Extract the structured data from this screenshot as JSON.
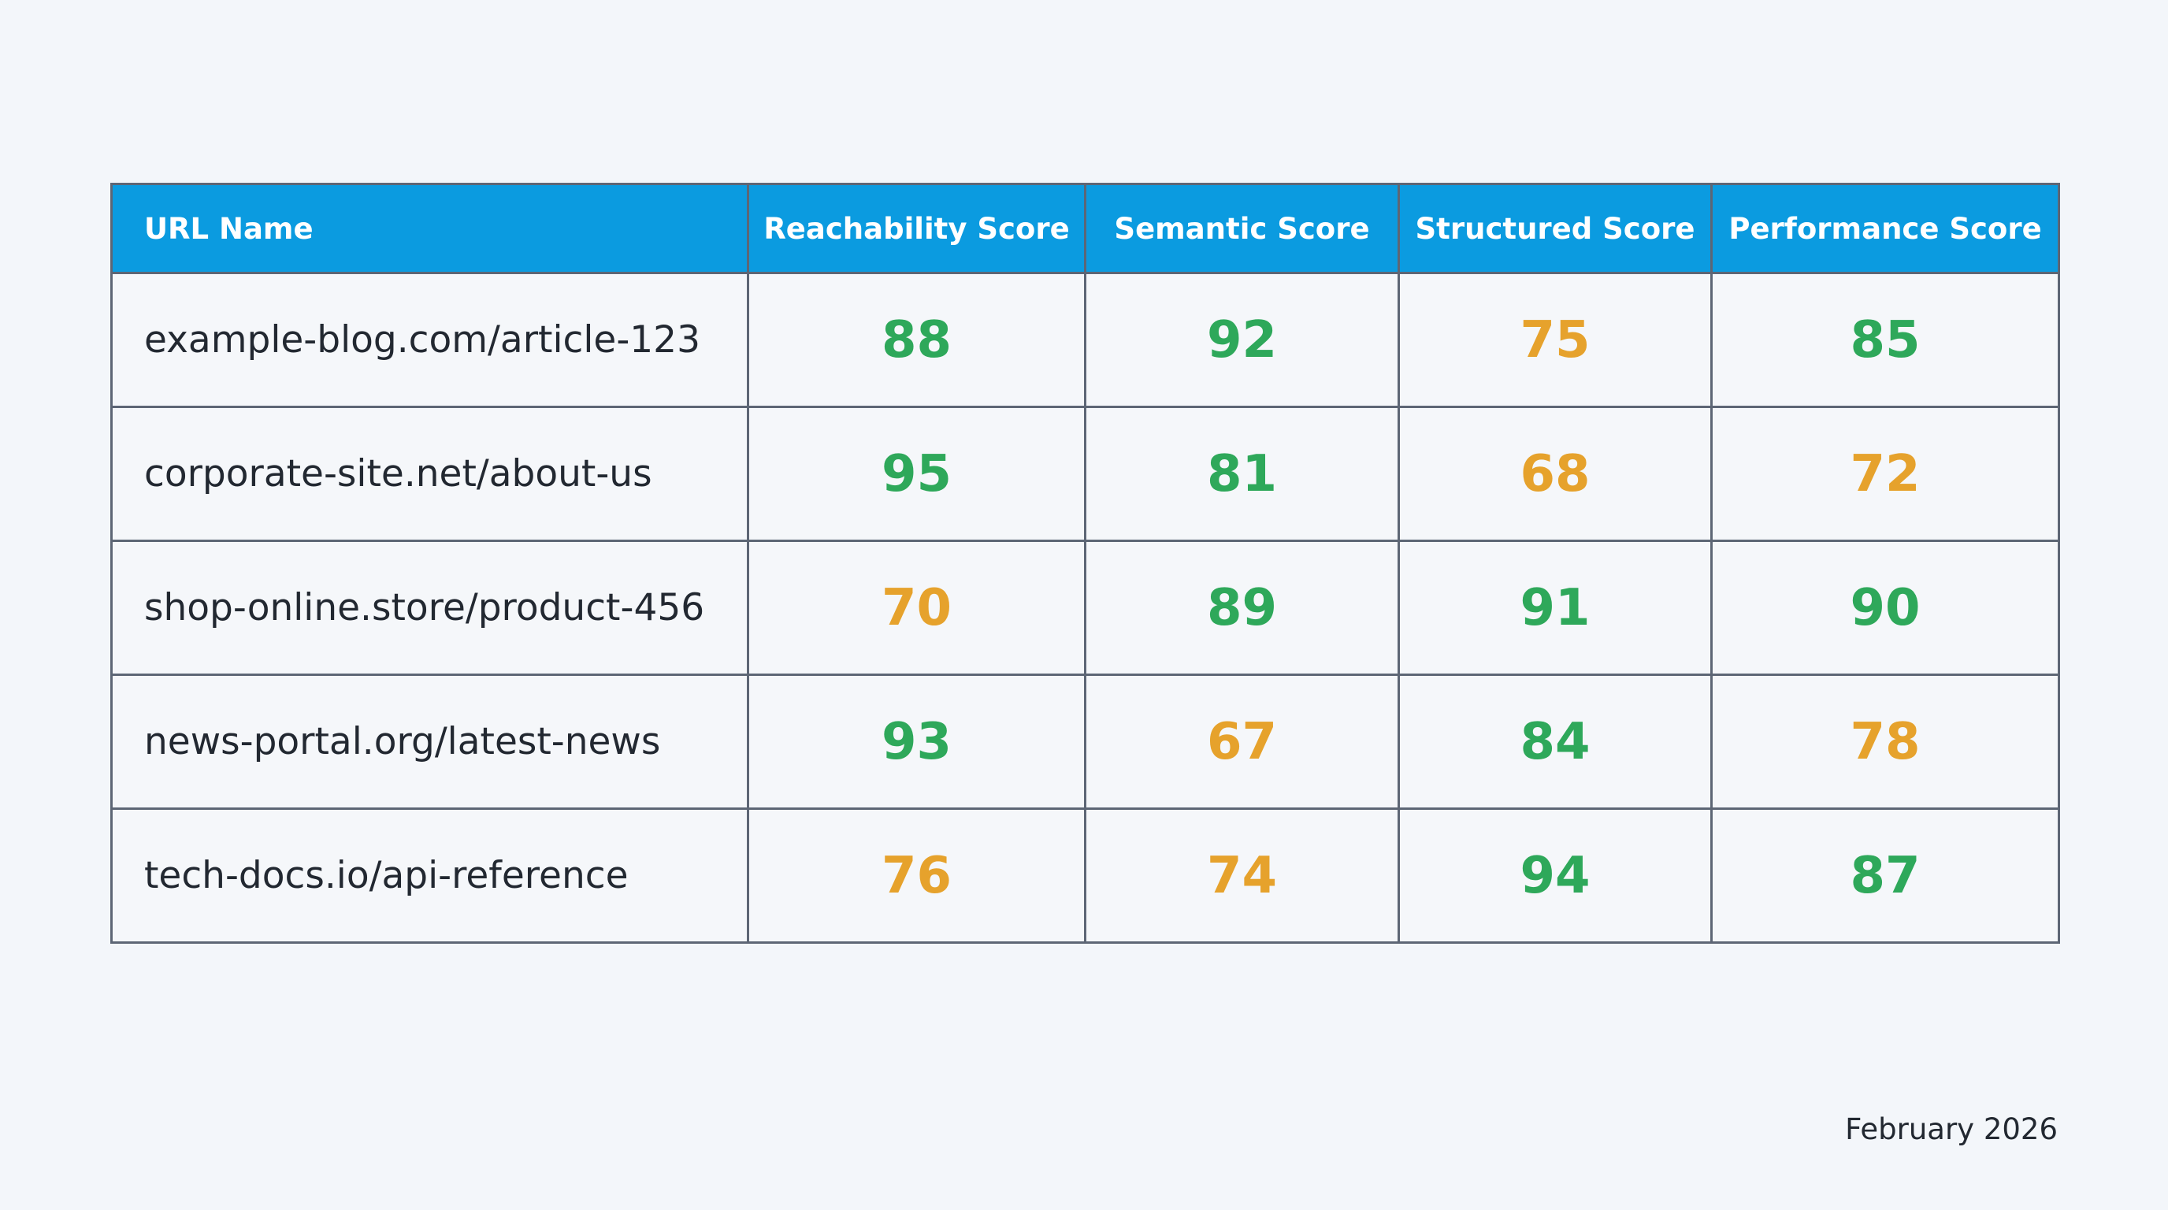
{
  "table": {
    "header": [
      "URL Name",
      "Reachability Score",
      "Semantic Score",
      "Structured Score",
      "Performance Score"
    ],
    "rows": [
      [
        "example-blog.com/article-123",
        {
          "value": 88,
          "color": "#2ea85a"
        },
        {
          "value": 92,
          "color": "#2ea85a"
        },
        {
          "value": 75,
          "color": "#e6a22c"
        },
        {
          "value": 85,
          "color": "#2ea85a"
        }
      ],
      [
        "corporate-site.net/about-us",
        {
          "value": 95,
          "color": "#2ea85a"
        },
        {
          "value": 81,
          "color": "#2ea85a"
        },
        {
          "value": 68,
          "color": "#e6a22c"
        },
        {
          "value": 72,
          "color": "#e6a22c"
        }
      ],
      [
        "shop-online.store/product-456",
        {
          "value": 70,
          "color": "#e6a22c"
        },
        {
          "value": 89,
          "color": "#2ea85a"
        },
        {
          "value": 91,
          "color": "#2ea85a"
        },
        {
          "value": 90,
          "color": "#2ea85a"
        }
      ],
      [
        "news-portal.org/latest-news",
        {
          "value": 93,
          "color": "#2ea85a"
        },
        {
          "value": 67,
          "color": "#e6a22c"
        },
        {
          "value": 84,
          "color": "#2ea85a"
        },
        {
          "value": 78,
          "color": "#e6a22c"
        }
      ],
      [
        "tech-docs.io/api-reference",
        {
          "value": 76,
          "color": "#e6a22c"
        },
        {
          "value": 74,
          "color": "#e6a22c"
        },
        {
          "value": 94,
          "color": "#2ea85a"
        },
        {
          "value": 87,
          "color": "#2ea85a"
        }
      ]
    ]
  },
  "footer": {
    "date": "February 2026"
  }
}
